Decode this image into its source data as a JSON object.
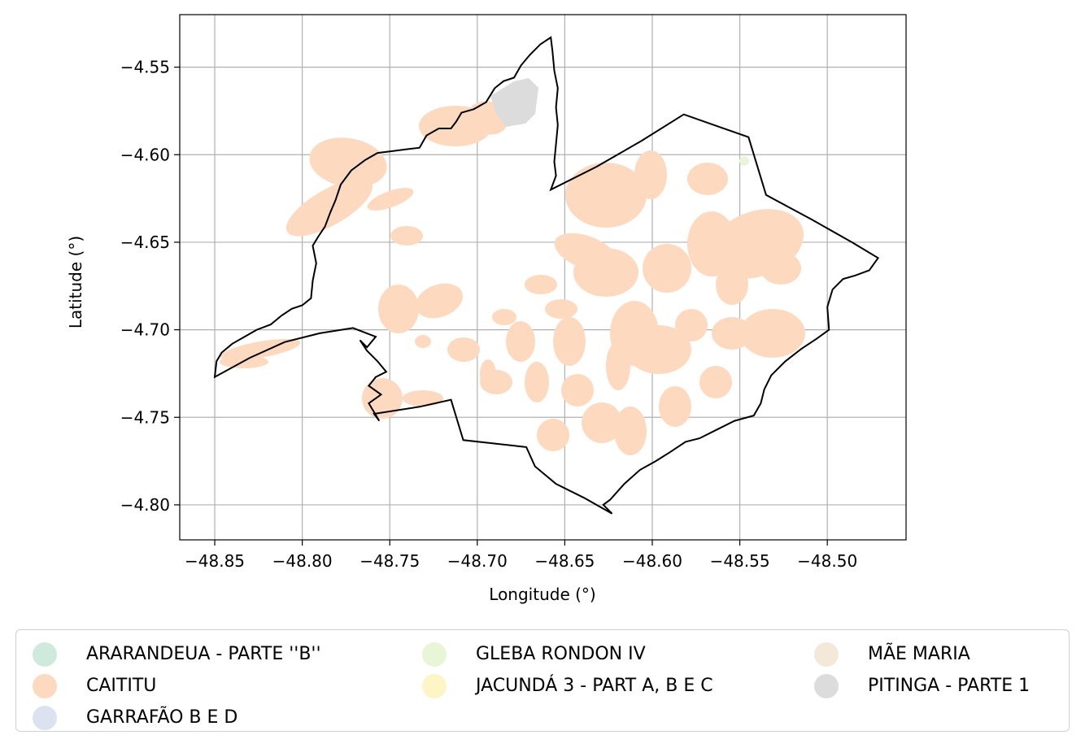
{
  "map": {
    "x_axis": {
      "label": "Longitude (°)",
      "ticks": [
        "−48.85",
        "−48.80",
        "−48.75",
        "−48.70",
        "−48.65",
        "−48.60",
        "−48.55",
        "−48.50"
      ],
      "tick_values": [
        -48.85,
        -48.8,
        -48.75,
        -48.7,
        -48.65,
        -48.6,
        -48.55,
        -48.5
      ],
      "range": [
        -48.87,
        -48.455
      ]
    },
    "y_axis": {
      "label": "Latitude (°)",
      "ticks": [
        "−4.55",
        "−4.60",
        "−4.65",
        "−4.70",
        "−4.75",
        "−4.80"
      ],
      "tick_values": [
        -4.55,
        -4.6,
        -4.65,
        -4.7,
        -4.75,
        -4.8
      ],
      "range": [
        -4.82,
        -4.52
      ]
    },
    "grid": true,
    "boundary_color": "#000000",
    "legend_placement": "below",
    "boundary_polygon": [
      [
        -48.849,
        -4.718
      ],
      [
        -48.846,
        -4.713
      ],
      [
        -48.84,
        -4.708
      ],
      [
        -48.833,
        -4.704
      ],
      [
        -48.826,
        -4.7
      ],
      [
        -48.818,
        -4.697
      ],
      [
        -48.812,
        -4.692
      ],
      [
        -48.806,
        -4.688
      ],
      [
        -48.8,
        -4.686
      ],
      [
        -48.795,
        -4.682
      ],
      [
        -48.794,
        -4.672
      ],
      [
        -48.792,
        -4.662
      ],
      [
        -48.794,
        -4.652
      ],
      [
        -48.791,
        -4.647
      ],
      [
        -48.787,
        -4.641
      ],
      [
        -48.784,
        -4.633
      ],
      [
        -48.781,
        -4.626
      ],
      [
        -48.778,
        -4.617
      ],
      [
        -48.772,
        -4.609
      ],
      [
        -48.764,
        -4.603
      ],
      [
        -48.757,
        -4.599
      ],
      [
        -48.749,
        -4.598
      ],
      [
        -48.741,
        -4.597
      ],
      [
        -48.733,
        -4.596
      ],
      [
        -48.729,
        -4.589
      ],
      [
        -48.722,
        -4.585
      ],
      [
        -48.715,
        -4.585
      ],
      [
        -48.712,
        -4.581
      ],
      [
        -48.709,
        -4.576
      ],
      [
        -48.702,
        -4.574
      ],
      [
        -48.695,
        -4.57
      ],
      [
        -48.69,
        -4.562
      ],
      [
        -48.685,
        -4.558
      ],
      [
        -48.679,
        -4.556
      ],
      [
        -48.675,
        -4.549
      ],
      [
        -48.67,
        -4.543
      ],
      [
        -48.664,
        -4.537
      ],
      [
        -48.658,
        -4.533
      ],
      [
        -48.657,
        -4.541
      ],
      [
        -48.656,
        -4.552
      ],
      [
        -48.654,
        -4.562
      ],
      [
        -48.655,
        -4.573
      ],
      [
        -48.654,
        -4.583
      ],
      [
        -48.655,
        -4.594
      ],
      [
        -48.656,
        -4.604
      ],
      [
        -48.655,
        -4.612
      ],
      [
        -48.658,
        -4.62
      ],
      [
        -48.632,
        -4.607
      ],
      [
        -48.606,
        -4.592
      ],
      [
        -48.582,
        -4.577
      ],
      [
        -48.545,
        -4.59
      ],
      [
        -48.535,
        -4.623
      ],
      [
        -48.509,
        -4.637
      ],
      [
        -48.486,
        -4.65
      ],
      [
        -48.471,
        -4.659
      ],
      [
        -48.476,
        -4.666
      ],
      [
        -48.484,
        -4.669
      ],
      [
        -48.491,
        -4.671
      ],
      [
        -48.497,
        -4.677
      ],
      [
        -48.5,
        -4.687
      ],
      [
        -48.499,
        -4.7
      ],
      [
        -48.506,
        -4.705
      ],
      [
        -48.515,
        -4.711
      ],
      [
        -48.524,
        -4.718
      ],
      [
        -48.532,
        -4.726
      ],
      [
        -48.536,
        -4.734
      ],
      [
        -48.538,
        -4.742
      ],
      [
        -48.542,
        -4.749
      ],
      [
        -48.553,
        -4.752
      ],
      [
        -48.563,
        -4.757
      ],
      [
        -48.573,
        -4.762
      ],
      [
        -48.581,
        -4.764
      ],
      [
        -48.59,
        -4.77
      ],
      [
        -48.598,
        -4.775
      ],
      [
        -48.607,
        -4.78
      ],
      [
        -48.616,
        -4.788
      ],
      [
        -48.624,
        -4.797
      ],
      [
        -48.628,
        -4.8
      ],
      [
        -48.623,
        -4.805
      ],
      [
        -48.639,
        -4.796
      ],
      [
        -48.655,
        -4.788
      ],
      [
        -48.667,
        -4.778
      ],
      [
        -48.672,
        -4.767
      ],
      [
        -48.708,
        -4.763
      ],
      [
        -48.715,
        -4.74
      ],
      [
        -48.733,
        -4.744
      ],
      [
        -48.759,
        -4.748
      ],
      [
        -48.756,
        -4.752
      ],
      [
        -48.762,
        -4.742
      ],
      [
        -48.755,
        -4.737
      ],
      [
        -48.762,
        -4.732
      ],
      [
        -48.758,
        -4.727
      ],
      [
        -48.752,
        -4.724
      ],
      [
        -48.757,
        -4.718
      ],
      [
        -48.763,
        -4.712
      ],
      [
        -48.767,
        -4.706
      ],
      [
        -48.763,
        -4.71
      ],
      [
        -48.758,
        -4.704
      ],
      [
        -48.771,
        -4.699
      ],
      [
        -48.79,
        -4.702
      ],
      [
        -48.81,
        -4.707
      ],
      [
        -48.83,
        -4.716
      ],
      [
        -48.85,
        -4.727
      ]
    ]
  },
  "legend": {
    "columns": [
      [
        {
          "label": "ARARANDEUA - PARTE ''B''",
          "color": "#cfe9dc"
        },
        {
          "label": "CAITITU",
          "color": "#fdd9c0"
        },
        {
          "label": "GARRAFÃO B E D",
          "color": "#dde2f1"
        }
      ],
      [
        {
          "label": "GLEBA RONDON IV",
          "color": "#e9f5d7"
        },
        {
          "label": "JACUNDÁ 3 - PART A, B E C",
          "color": "#fdf5c6"
        }
      ],
      [
        {
          "label": "MÃE MARIA",
          "color": "#f4e8d8"
        },
        {
          "label": "PITINGA - PARTE 1",
          "color": "#dcdcdc"
        }
      ]
    ]
  }
}
